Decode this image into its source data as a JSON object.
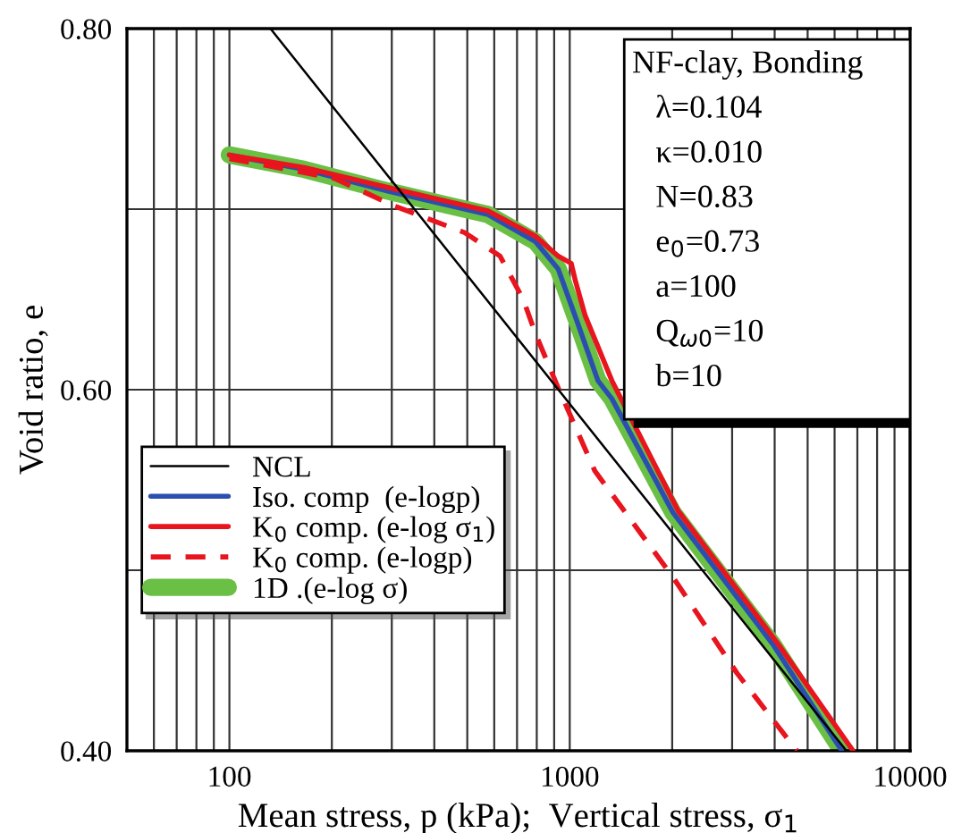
{
  "chart_data": {
    "type": "line",
    "xlabel": "Mean stress, p (kPa);  Vertical stress, σ$_{1}$",
    "ylabel": "Void ratio, e",
    "log": "x",
    "xlim": [
      50,
      10000
    ],
    "xticks": [
      {
        "value": 60,
        "label": null
      },
      {
        "value": 70,
        "label": null
      },
      {
        "value": 80,
        "label": null
      },
      {
        "value": 90,
        "label": null
      },
      100,
      {
        "value": 200,
        "label": null
      },
      {
        "value": 300,
        "label": null
      },
      {
        "value": 400,
        "label": null
      },
      {
        "value": 500,
        "label": null
      },
      {
        "value": 600,
        "label": null
      },
      {
        "value": 700,
        "label": null
      },
      {
        "value": 800,
        "label": null
      },
      {
        "value": 900,
        "label": null
      },
      1000,
      {
        "value": 2000,
        "label": null
      },
      {
        "value": 3000,
        "label": null
      },
      {
        "value": 4000,
        "label": null
      },
      {
        "value": 5000,
        "label": null
      },
      {
        "value": 6000,
        "label": null
      },
      {
        "value": 7000,
        "label": null
      },
      {
        "value": 8000,
        "label": null
      },
      {
        "value": 9000,
        "label": null
      },
      10000
    ],
    "ylim": [
      0.4,
      0.8
    ],
    "yticks": [
      {
        "value": 0.4,
        "label": "0.40"
      },
      {
        "value": 0.5,
        "label": null
      },
      {
        "value": 0.6,
        "label": "0.60"
      },
      {
        "value": 0.7,
        "label": null
      },
      {
        "value": 0.8,
        "label": "0.80"
      }
    ],
    "grid": true,
    "legend": "bottom left",
    "marker": "none",
    "series": [
      {
        "name": "NCL",
        "color": "#000000",
        "line_style": "solid",
        "x": [
          132,
          6500
        ],
        "values": [
          0.8,
          0.4
        ]
      },
      {
        "name": "Iso. comp  (e-logp)",
        "color": "#2b4fb0",
        "line_style": "solid",
        "x": [
          100,
          166,
          292,
          575,
          793,
          924,
          1050,
          1210,
          1330,
          2010,
          3950,
          6300
        ],
        "values": [
          0.73,
          0.722,
          0.71,
          0.697,
          0.682,
          0.667,
          0.638,
          0.605,
          0.595,
          0.532,
          0.459,
          0.4
        ]
      },
      {
        "name": "K$_{0}$ comp. (e-log σ$_{1}$)",
        "color": "#e8141e",
        "line_style": "solid",
        "x": [
          100,
          166,
          292,
          575,
          793,
          924,
          1010,
          1040,
          1110,
          1330,
          2080,
          4100,
          6800
        ],
        "values": [
          0.73,
          0.723,
          0.712,
          0.699,
          0.685,
          0.674,
          0.67,
          0.66,
          0.641,
          0.605,
          0.533,
          0.459,
          0.4
        ]
      },
      {
        "name": "K$_{0}$ comp. (e-logp)",
        "color": "#e8141e",
        "line_style": "dashed",
        "x": [
          100,
          204,
          303,
          491,
          624,
          730,
          793,
          925,
          1185,
          2013,
          3100,
          4650
        ],
        "values": [
          0.728,
          0.717,
          0.702,
          0.687,
          0.674,
          0.65,
          0.631,
          0.601,
          0.555,
          0.496,
          0.443,
          0.4
        ]
      },
      {
        "name": "1D .(e-log σ)",
        "color": "#6abf45",
        "line_style": "solid",
        "x": [
          100,
          166,
          292,
          575,
          793,
          924,
          1050,
          1210,
          1330,
          2010,
          3950,
          6300
        ],
        "values": [
          0.73,
          0.722,
          0.71,
          0.697,
          0.682,
          0.667,
          0.638,
          0.605,
          0.595,
          0.532,
          0.459,
          0.4
        ]
      }
    ],
    "annotations": [
      "NF-clay, Bonding",
      "λ=0.104",
      "κ=0.010",
      "N=0.83",
      "e$_{0}$=0.73",
      "a=100",
      "Q$_{ω0}$=10",
      "b=10"
    ]
  }
}
